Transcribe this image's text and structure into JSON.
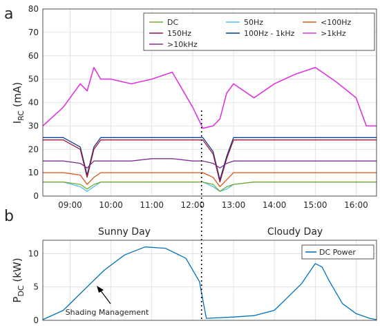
{
  "panel_a": {
    "label": "a",
    "ylabel_main": "I",
    "ylabel_sub": "RC",
    "ylabel_unit": " (mA)"
  },
  "panel_b": {
    "label": "b",
    "ylabel_main": "P",
    "ylabel_sub": "DC",
    "ylabel_unit": " (kW)",
    "left_title": "Sunny Day",
    "right_title": "Cloudy Day",
    "annotation": "Shading Management"
  },
  "colors": {
    "DC": "#77ac30",
    "50Hz": "#4dbeee",
    "<100Hz": "#d95319",
    "150Hz": "#a2142f",
    "100Hz - 1kHz": "#0b3d91",
    ">1kHz": "#e033e0",
    ">10kHz": "#7e2f8e",
    "DC Power": "#0072bd"
  },
  "chart_data": [
    {
      "type": "line",
      "xlabel": "",
      "ylabel": "I_RC (mA)",
      "xlim": [
        "08:20",
        "16:30"
      ],
      "ylim": [
        0,
        80
      ],
      "x_ticks": [
        "09:00",
        "10:00",
        "11:00",
        "12:00",
        "13:00",
        "14:00",
        "15:00",
        "16:00"
      ],
      "y_ticks": [
        0,
        10,
        20,
        30,
        40,
        50,
        60,
        70,
        80
      ],
      "grid": true,
      "legend_position": "top-right",
      "vline_time": "12:13",
      "x": [
        "08:20",
        "08:50",
        "09:15",
        "09:25",
        "09:35",
        "09:45",
        "10:00",
        "10:30",
        "11:00",
        "11:30",
        "12:00",
        "12:15",
        "12:30",
        "12:40",
        "12:50",
        "13:00",
        "13:30",
        "14:00",
        "14:30",
        "15:00",
        "15:30",
        "16:00",
        "16:15",
        "16:30"
      ],
      "series": [
        {
          "name": "DC",
          "values": [
            6,
            6,
            5,
            3,
            5,
            6,
            6,
            6,
            6,
            6,
            6,
            6,
            5,
            2,
            4,
            5,
            6,
            6,
            6,
            6,
            6,
            6,
            6,
            6
          ]
        },
        {
          "name": "50Hz",
          "values": [
            6,
            6,
            4,
            2,
            4,
            6,
            6,
            6,
            6,
            6,
            6,
            6,
            4,
            2,
            3,
            5,
            6,
            6,
            6,
            6,
            6,
            6,
            6,
            6
          ]
        },
        {
          "name": "<100Hz",
          "values": [
            10,
            10,
            9,
            5,
            8,
            10,
            10,
            10,
            10,
            10,
            10,
            10,
            8,
            4,
            7,
            10,
            10,
            10,
            10,
            10,
            10,
            10,
            10,
            10
          ]
        },
        {
          "name": "150Hz",
          "values": [
            24,
            24,
            20,
            8,
            20,
            24,
            24,
            24,
            24,
            24,
            24,
            24,
            18,
            6,
            16,
            24,
            24,
            24,
            24,
            24,
            24,
            24,
            24,
            24
          ]
        },
        {
          "name": "100Hz - 1kHz",
          "values": [
            25,
            25,
            21,
            9,
            21,
            25,
            25,
            25,
            25,
            25,
            25,
            25,
            19,
            7,
            17,
            25,
            25,
            25,
            25,
            25,
            25,
            25,
            25,
            25
          ]
        },
        {
          "name": ">1kHz",
          "values": [
            30,
            38,
            48,
            45,
            55,
            50,
            50,
            48,
            50,
            53,
            38,
            29,
            30,
            33,
            44,
            48,
            42,
            48,
            52,
            55,
            49,
            42,
            30,
            30
          ]
        },
        {
          "name": ">10kHz",
          "values": [
            15,
            15,
            14,
            12,
            15,
            15,
            15,
            15,
            16,
            16,
            15,
            15,
            14,
            12,
            14,
            15,
            15,
            15,
            15,
            15,
            15,
            15,
            15,
            15
          ]
        }
      ]
    },
    {
      "type": "line",
      "xlabel": "",
      "ylabel": "P_DC (kW)",
      "ylim": [
        0,
        12
      ],
      "y_ticks": [
        0,
        5,
        10
      ],
      "grid": true,
      "legend_position": "top-right",
      "x": [
        "08:20",
        "08:50",
        "09:20",
        "09:50",
        "10:20",
        "10:50",
        "11:20",
        "11:50",
        "12:10",
        "12:20",
        "13:00",
        "13:30",
        "14:00",
        "14:20",
        "14:40",
        "15:00",
        "15:10",
        "15:20",
        "15:40",
        "16:00",
        "16:20",
        "16:30"
      ],
      "series": [
        {
          "name": "DC Power",
          "values": [
            0.1,
            1.5,
            4.5,
            7.5,
            9.8,
            11.0,
            10.8,
            9.3,
            5.8,
            0.3,
            0.5,
            0.7,
            1.5,
            3.5,
            5.5,
            8.5,
            8.0,
            6.0,
            2.5,
            1.0,
            0.3,
            0.1
          ]
        }
      ]
    }
  ]
}
